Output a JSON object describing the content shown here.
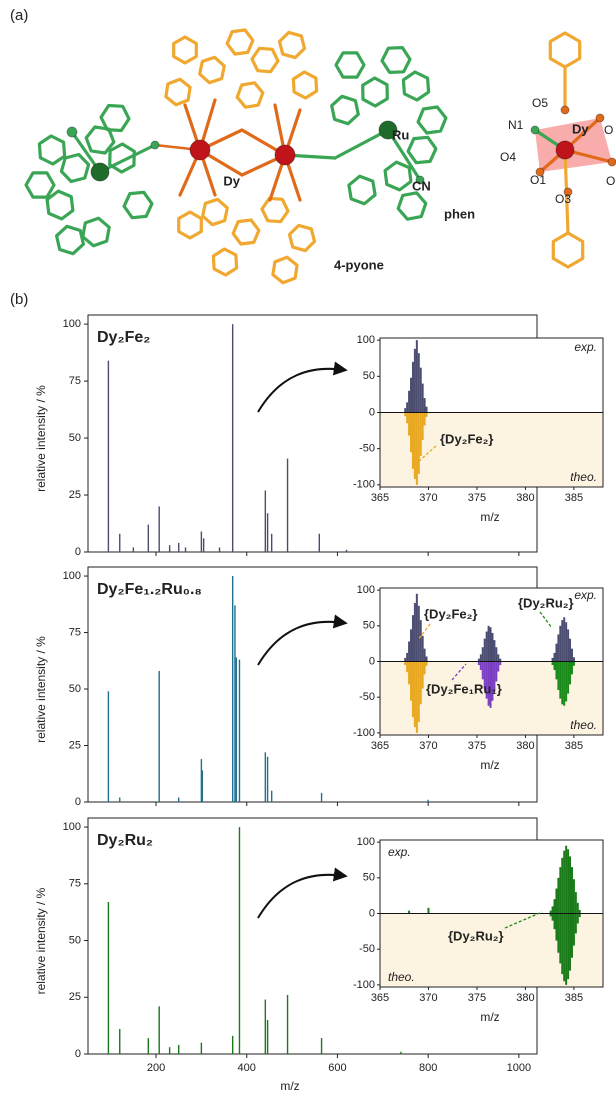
{
  "structure": {
    "panel_label": "(a)",
    "labels": [
      {
        "text": "Ru",
        "color": "#2e8b3e"
      },
      {
        "text": "Dy",
        "color": "#a01418"
      },
      {
        "text": "CN",
        "color": "#2e8b3e"
      },
      {
        "text": "phen",
        "color": "#2e8b3e"
      },
      {
        "text": "4-pyone",
        "color": "#e8a21c"
      },
      {
        "text": "O5",
        "color": "#e07a1a"
      },
      {
        "text": "N1",
        "color": "#2e8b3e"
      },
      {
        "text": "Dy",
        "color": "#a01418"
      },
      {
        "text": "O",
        "color": "#e07a1a"
      },
      {
        "text": "O4",
        "color": "#e07a1a"
      },
      {
        "text": "O1",
        "color": "#e07a1a"
      },
      {
        "text": "O",
        "color": "#e07a1a"
      },
      {
        "text": "O3",
        "color": "#e07a1a"
      }
    ]
  },
  "spectra_panel_label": "(b)",
  "chart_data": [
    {
      "type": "bar",
      "title": "Dy₂Fe₂",
      "title_color": "#e8b030",
      "ylabel": "relative intensity / %",
      "color": "#4b4d70",
      "x": [
        95,
        120,
        150,
        183,
        207,
        230,
        250,
        265,
        300,
        305,
        340,
        369,
        441,
        446,
        455,
        490,
        560,
        620
      ],
      "values": [
        84,
        8,
        2,
        12,
        20,
        3,
        4,
        2,
        9,
        6,
        2,
        100,
        27,
        17,
        8,
        41,
        8,
        1
      ],
      "xlim": [
        50,
        1040
      ],
      "xticks": [
        200,
        400,
        600,
        800,
        1000
      ],
      "ylim": [
        0,
        104
      ],
      "yticks": [
        0,
        25,
        50,
        75,
        100
      ]
    },
    {
      "type": "bar",
      "xlabel": "m/z",
      "xlim": [
        365,
        388
      ],
      "xticks": [
        365,
        370,
        375,
        380,
        385
      ],
      "ylim": [
        -103,
        103
      ],
      "yticks": [
        -100,
        -50,
        0,
        50,
        100
      ],
      "annotations": [
        {
          "text": "exp.",
          "color": "#7a1a1a"
        },
        {
          "text": "theo.",
          "color": "#7a1a1a"
        },
        {
          "text": "{Dy₂Fe₂}",
          "color": "#e8a821"
        }
      ],
      "series": [
        {
          "color": "#4b4d70",
          "x": [
            367.6,
            367.8,
            368.0,
            368.2,
            368.4,
            368.6,
            368.8,
            369.0,
            369.2,
            369.4,
            369.6,
            369.8
          ],
          "values": [
            6,
            14,
            30,
            48,
            70,
            88,
            100,
            82,
            62,
            40,
            20,
            8
          ]
        },
        {
          "color": "#e8a821",
          "x": [
            367.6,
            367.8,
            368.0,
            368.2,
            368.4,
            368.6,
            368.8,
            369.0,
            369.2,
            369.4,
            369.6,
            369.8
          ],
          "values": [
            -5,
            -15,
            -32,
            -55,
            -78,
            -92,
            -100,
            -85,
            -60,
            -38,
            -18,
            -6
          ]
        }
      ]
    },
    {
      "type": "bar",
      "title": "Dy₂Fe₁.₂Ru₀.₈",
      "title_color": "#7b3fc4",
      "ylabel": "relative intensity / %",
      "color": "#20708e",
      "x": [
        95,
        120,
        207,
        250,
        300,
        302,
        369,
        374,
        377,
        384,
        441,
        446,
        455,
        565,
        800
      ],
      "values": [
        49,
        2,
        58,
        2,
        19,
        14,
        100,
        87,
        64,
        63,
        22,
        20,
        5,
        4,
        1
      ],
      "xlim": [
        50,
        1040
      ],
      "xticks": [
        200,
        400,
        600,
        800,
        1000
      ],
      "ylim": [
        0,
        104
      ],
      "yticks": [
        0,
        25,
        50,
        75,
        100
      ]
    },
    {
      "type": "bar",
      "xlabel": "m/z",
      "xlim": [
        365,
        388
      ],
      "xticks": [
        365,
        370,
        375,
        380,
        385
      ],
      "ylim": [
        -103,
        103
      ],
      "yticks": [
        -100,
        -50,
        0,
        50,
        100
      ],
      "annotations": [
        {
          "text": "exp.",
          "color": "#7a1a1a"
        },
        {
          "text": "theo.",
          "color": "#7a1a1a"
        },
        {
          "text": "{Dy₂Fe₂}",
          "color": "#e8a821"
        },
        {
          "text": "{Dy₂Ru₂}",
          "color": "#1a8a1a"
        },
        {
          "text": "{Dy₂Fe₁Ru₁}",
          "color": "#7b3fc4"
        }
      ],
      "series": [
        {
          "color": "#4b4d70",
          "x": [
            367.6,
            367.8,
            368.0,
            368.2,
            368.4,
            368.6,
            368.8,
            369.0,
            369.2,
            369.4,
            369.6,
            369.8,
            375.2,
            375.4,
            375.6,
            375.8,
            376.0,
            376.2,
            376.4,
            376.6,
            376.8,
            377.0,
            377.2,
            377.4,
            382.8,
            383.0,
            383.2,
            383.4,
            383.6,
            383.8,
            384.0,
            384.2,
            384.4,
            384.6,
            384.8,
            385.0
          ],
          "values": [
            5,
            12,
            28,
            45,
            65,
            82,
            95,
            78,
            58,
            36,
            18,
            7,
            4,
            10,
            20,
            32,
            42,
            50,
            48,
            40,
            30,
            20,
            10,
            4,
            5,
            12,
            25,
            38,
            50,
            58,
            62,
            55,
            45,
            32,
            18,
            6
          ]
        },
        {
          "color": "#e8a821",
          "x": [
            367.6,
            367.8,
            368.0,
            368.2,
            368.4,
            368.6,
            368.8,
            369.0,
            369.2,
            369.4,
            369.6,
            369.8
          ],
          "values": [
            -5,
            -15,
            -32,
            -55,
            -78,
            -92,
            -100,
            -85,
            -60,
            -38,
            -18,
            -6
          ]
        },
        {
          "color": "#7b3fc4",
          "x": [
            375.2,
            375.4,
            375.6,
            375.8,
            376.0,
            376.2,
            376.4,
            376.6,
            376.8,
            377.0,
            377.2,
            377.4
          ],
          "values": [
            -5,
            -12,
            -25,
            -38,
            -52,
            -62,
            -65,
            -55,
            -42,
            -28,
            -14,
            -5
          ]
        },
        {
          "color": "#1a8a1a",
          "x": [
            382.8,
            383.0,
            383.2,
            383.4,
            383.6,
            383.8,
            384.0,
            384.2,
            384.4,
            384.6,
            384.8,
            385.0
          ],
          "values": [
            -5,
            -12,
            -25,
            -40,
            -52,
            -60,
            -62,
            -56,
            -45,
            -32,
            -18,
            -6
          ]
        }
      ]
    },
    {
      "type": "bar",
      "title": "Dy₂Ru₂",
      "title_color": "#1a7a1a",
      "ylabel": "relative intensity / %",
      "color": "#1a7a1a",
      "xlabel": "m/z",
      "x": [
        95,
        120,
        183,
        207,
        230,
        250,
        300,
        369,
        384,
        441,
        446,
        490,
        565,
        740
      ],
      "values": [
        67,
        11,
        7,
        21,
        3,
        4,
        5,
        8,
        100,
        24,
        15,
        26,
        7,
        1
      ],
      "xlim": [
        50,
        1040
      ],
      "xticks": [
        200,
        400,
        600,
        800,
        1000
      ],
      "ylim": [
        0,
        104
      ],
      "yticks": [
        0,
        25,
        50,
        75,
        100
      ]
    },
    {
      "type": "bar",
      "xlabel": "m/z",
      "xlim": [
        365,
        388
      ],
      "xticks": [
        365,
        370,
        375,
        380,
        385
      ],
      "ylim": [
        -103,
        103
      ],
      "yticks": [
        -100,
        -50,
        0,
        50,
        100
      ],
      "annotations": [
        {
          "text": "exp.",
          "color": "#7a1a1a"
        },
        {
          "text": "theo.",
          "color": "#7a1a1a"
        },
        {
          "text": "{Dy₂Ru₂}",
          "color": "#1a8a1a"
        }
      ],
      "series": [
        {
          "color": "#1a7a1a",
          "x": [
            368.0,
            370.0,
            382.6,
            382.8,
            383.0,
            383.2,
            383.4,
            383.6,
            383.8,
            384.0,
            384.2,
            384.4,
            384.6,
            384.8,
            385.0,
            385.2,
            385.4,
            385.6
          ],
          "values": [
            4,
            8,
            4,
            10,
            20,
            35,
            50,
            65,
            78,
            88,
            95,
            90,
            80,
            65,
            48,
            30,
            15,
            5
          ]
        },
        {
          "color": "#1a7a1a",
          "x": [
            382.6,
            382.8,
            383.0,
            383.2,
            383.4,
            383.6,
            383.8,
            384.0,
            384.2,
            384.4,
            384.6,
            384.8,
            385.0,
            385.2,
            385.4,
            385.6
          ],
          "values": [
            -4,
            -10,
            -22,
            -38,
            -55,
            -70,
            -85,
            -95,
            -100,
            -92,
            -80,
            -62,
            -45,
            -28,
            -14,
            -5
          ]
        }
      ]
    }
  ]
}
